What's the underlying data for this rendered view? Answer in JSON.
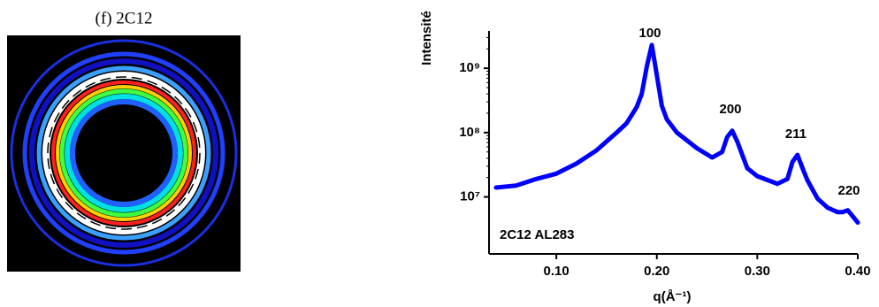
{
  "panel_title": "(f) 2C12",
  "chart_data": {
    "type": "line",
    "y_label": "Intensité",
    "x_label": "q(Å⁻¹)",
    "log_y": true,
    "color": "#0000ff",
    "annotations": [
      "100",
      "200",
      "211",
      "220",
      "2C12 AL283"
    ],
    "xlim": [
      0.033,
      0.4
    ],
    "ylim": [
      1300000,
      3800000000
    ],
    "xticks": [
      {
        "value": 0.1,
        "label": "0.10"
      },
      {
        "value": 0.2,
        "label": "0.20"
      },
      {
        "value": 0.3,
        "label": "0.30"
      },
      {
        "value": 0.4,
        "label": "0.40"
      }
    ],
    "yticks": [
      {
        "value": 10000000,
        "label": "10⁷"
      },
      {
        "value": 100000000,
        "label": "10⁸"
      },
      {
        "value": 1000000000,
        "label": "10⁹"
      }
    ],
    "x": [
      0.04,
      0.06,
      0.08,
      0.1,
      0.12,
      0.14,
      0.16,
      0.17,
      0.18,
      0.185,
      0.19,
      0.195,
      0.2,
      0.205,
      0.21,
      0.22,
      0.24,
      0.255,
      0.265,
      0.27,
      0.275,
      0.28,
      0.29,
      0.3,
      0.32,
      0.33,
      0.335,
      0.34,
      0.345,
      0.35,
      0.36,
      0.37,
      0.38,
      0.385,
      0.39,
      0.395,
      0.4
    ],
    "values": [
      14000000,
      15000000,
      19000000,
      23000000,
      33000000,
      53000000,
      100000000,
      140000000,
      250000000,
      400000000,
      1060000000,
      2300000000,
      780000000,
      260000000,
      160000000,
      100000000,
      57000000,
      41000000,
      50000000,
      85000000,
      107000000,
      73000000,
      28000000,
      21000000,
      16000000,
      19000000,
      35000000,
      45000000,
      28000000,
      18000000,
      9400000,
      6800000,
      5800000,
      5800000,
      6200000,
      5000000,
      4000000
    ]
  }
}
